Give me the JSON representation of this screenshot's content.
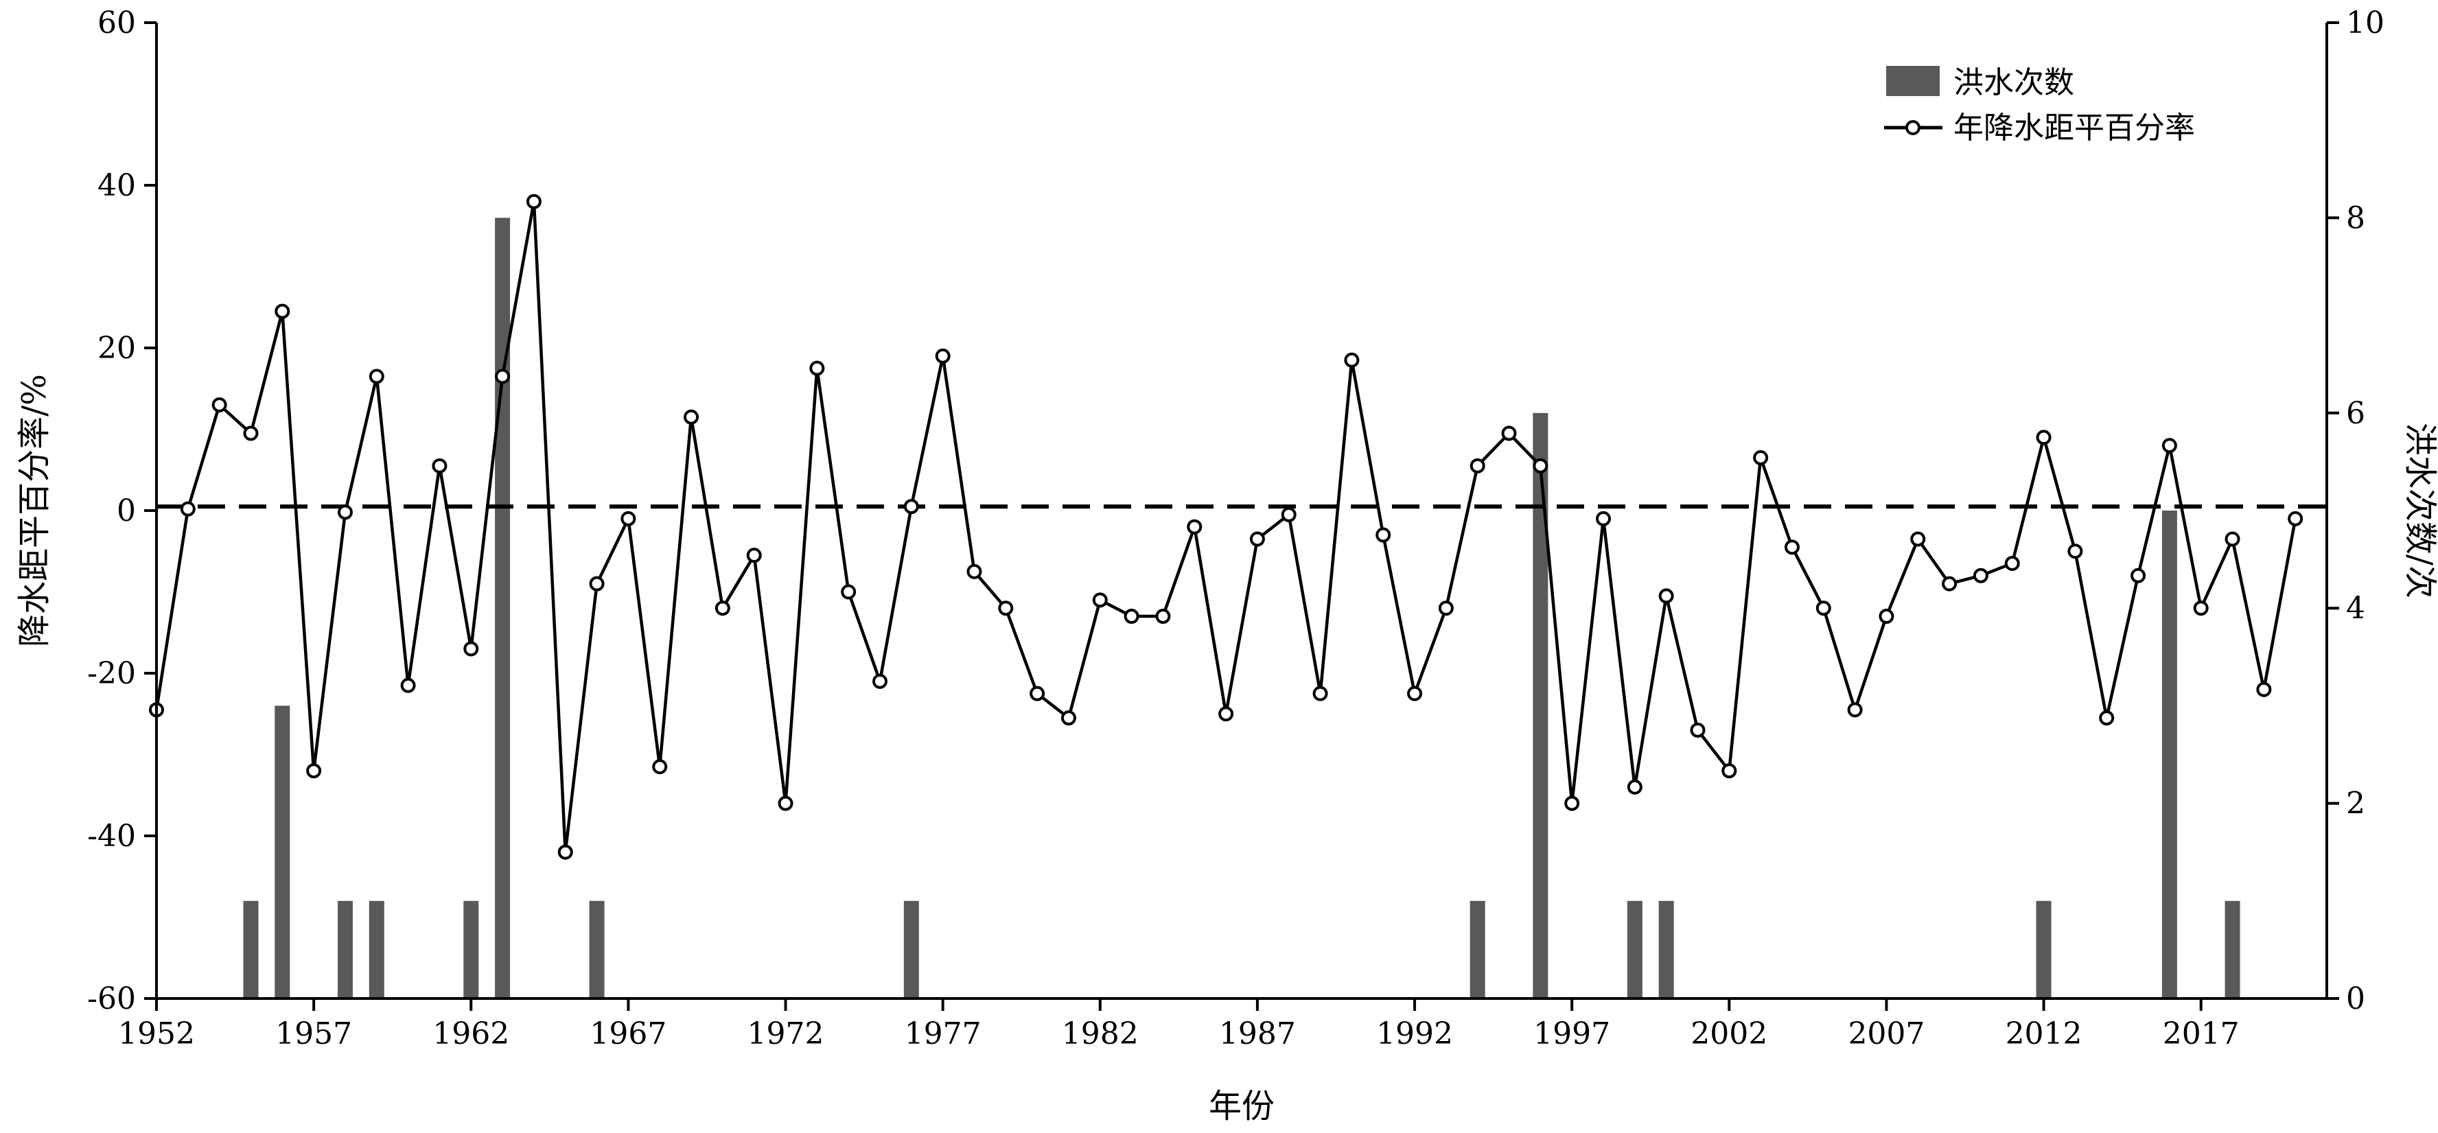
{
  "chart_data": {
    "type": "bar+line",
    "xlabel": "年份",
    "ylabel_left": "降水距平百分率/%",
    "ylabel_right": "洪水次数/次",
    "ylim_left": [
      -60,
      60
    ],
    "ylim_right": [
      0,
      10
    ],
    "yticks_left": [
      -60,
      -40,
      -20,
      0,
      20,
      40,
      60
    ],
    "yticks_right": [
      0,
      2,
      4,
      6,
      8,
      10
    ],
    "xlim": [
      1952,
      2021
    ],
    "xticks": [
      1952,
      1957,
      1962,
      1967,
      1972,
      1977,
      1982,
      1987,
      1992,
      1997,
      2002,
      2007,
      2012,
      2017
    ],
    "legend_position": "top-right",
    "legend": [
      "洪水次数",
      "年降水距平百分率"
    ],
    "reference_line": {
      "y": 0.5,
      "style": "dashed"
    },
    "series": [
      {
        "name": "洪水次数",
        "type": "bar",
        "axis": "right",
        "color": "#595959",
        "points": [
          {
            "x": 1955,
            "y": 1
          },
          {
            "x": 1956,
            "y": 3
          },
          {
            "x": 1958,
            "y": 1
          },
          {
            "x": 1959,
            "y": 1
          },
          {
            "x": 1962,
            "y": 1
          },
          {
            "x": 1963,
            "y": 8
          },
          {
            "x": 1966,
            "y": 1
          },
          {
            "x": 1976,
            "y": 1
          },
          {
            "x": 1994,
            "y": 1
          },
          {
            "x": 1996,
            "y": 6
          },
          {
            "x": 1999,
            "y": 1
          },
          {
            "x": 2000,
            "y": 1
          },
          {
            "x": 2012,
            "y": 1
          },
          {
            "x": 2016,
            "y": 5
          },
          {
            "x": 2018,
            "y": 1
          }
        ]
      },
      {
        "name": "年降水距平百分率",
        "type": "line",
        "axis": "left",
        "color": "#000000",
        "x": [
          1952,
          1953,
          1954,
          1955,
          1956,
          1957,
          1958,
          1959,
          1960,
          1961,
          1962,
          1963,
          1964,
          1965,
          1966,
          1967,
          1968,
          1969,
          1970,
          1971,
          1972,
          1973,
          1974,
          1975,
          1976,
          1977,
          1978,
          1979,
          1980,
          1981,
          1982,
          1983,
          1984,
          1985,
          1986,
          1987,
          1988,
          1989,
          1990,
          1991,
          1992,
          1993,
          1994,
          1995,
          1996,
          1997,
          1998,
          1999,
          2000,
          2001,
          2002,
          2003,
          2004,
          2005,
          2006,
          2007,
          2008,
          2009,
          2010,
          2011,
          2012,
          2013,
          2014,
          2015,
          2016,
          2017,
          2018,
          2019,
          2020
        ],
        "values": [
          -24.5,
          0.2,
          13,
          9.5,
          24.5,
          -32,
          -0.2,
          16.5,
          -21.5,
          5.5,
          -17,
          16.5,
          38,
          -42,
          -9,
          -1,
          -31.5,
          11.5,
          -12,
          -5.5,
          -36,
          17.5,
          -10,
          -21,
          0.5,
          19,
          -7.5,
          -12,
          -22.5,
          -25.5,
          -11,
          -13,
          -13,
          -2,
          -25,
          -3.5,
          -0.5,
          -22.5,
          18.5,
          -3,
          -22.5,
          -12,
          5.5,
          9.5,
          5.5,
          -36,
          -1,
          -34,
          -10.5,
          -27,
          -32,
          6.5,
          -4.5,
          -12,
          -24.5,
          -13,
          -3.5,
          -9,
          -8,
          -6.5,
          9,
          -5,
          -25.5,
          -8,
          8,
          -12,
          -3.5,
          -22,
          -1
        ]
      }
    ]
  }
}
